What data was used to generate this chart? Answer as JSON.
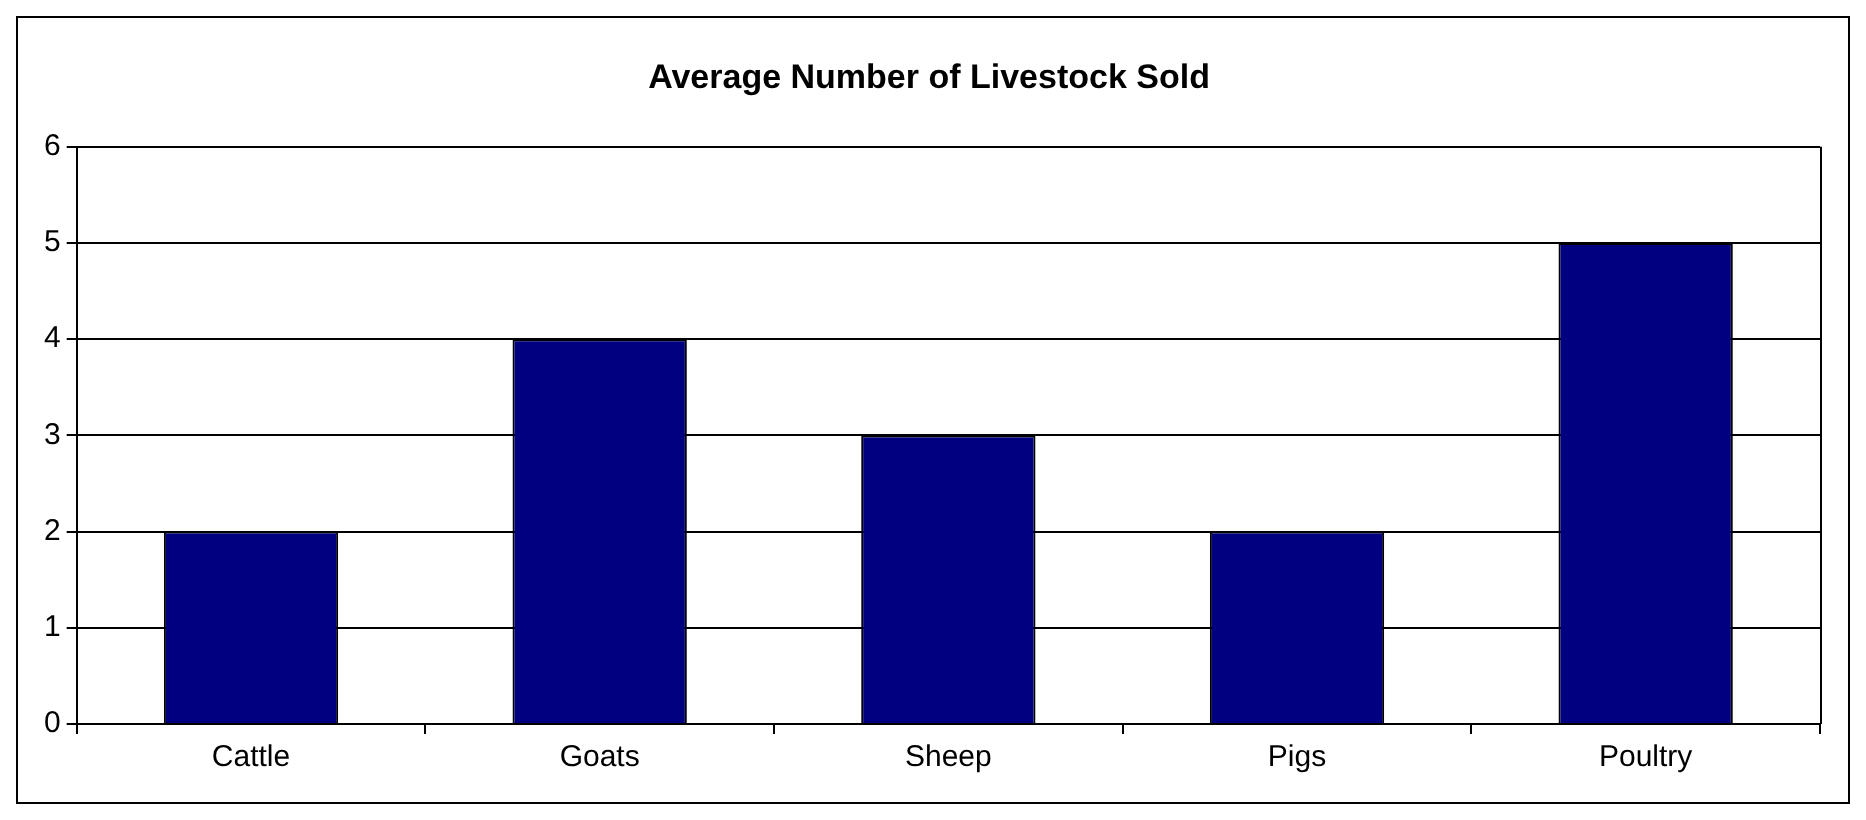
{
  "chart_data": {
    "type": "bar",
    "title": "Average Number of Livestock Sold",
    "categories": [
      "Cattle",
      "Goats",
      "Sheep",
      "Pigs",
      "Poultry"
    ],
    "values": [
      2,
      4,
      3,
      2,
      5
    ],
    "color": "#000080",
    "ylim": [
      0,
      6
    ],
    "yticks": [
      0,
      1,
      2,
      3,
      4,
      5,
      6
    ],
    "grid": "y",
    "legend": false
  }
}
